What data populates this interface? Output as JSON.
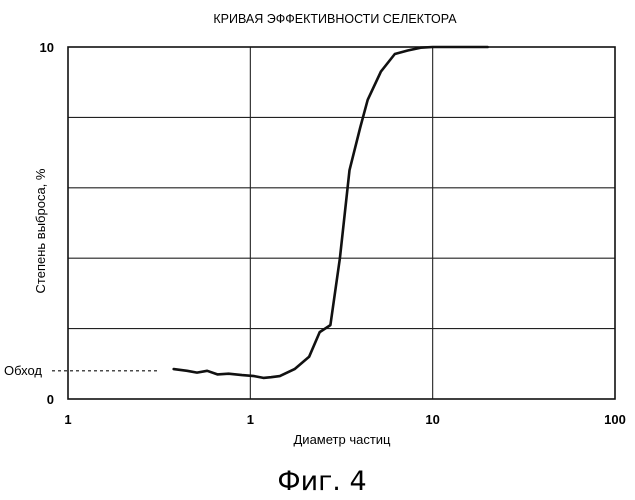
{
  "chart_data": {
    "type": "line",
    "title": "КРИВАЯ ЭФФЕКТИВНОСТИ СЕЛЕКТОРА",
    "xlabel": "Диаметр частиц",
    "ylabel": "Степень выброса, %",
    "x_scale": "log",
    "xlim": [
      0.1,
      100
    ],
    "ylim": [
      0,
      10
    ],
    "x_tick_labels": [
      "1",
      "1",
      "10",
      "100"
    ],
    "y_tick_labels": [
      "0",
      "10"
    ],
    "grid": true,
    "series": [
      {
        "x": [
          0.38,
          0.45,
          0.51,
          0.58,
          0.66,
          0.76,
          0.9,
          1.05,
          1.18,
          1.3,
          1.45,
          1.75,
          2.1,
          2.4,
          2.75,
          3.1,
          3.5,
          4.0,
          4.4,
          5.2,
          6.2,
          7.3,
          8.6,
          10.0,
          12.0,
          16.0,
          20.0
        ],
        "y": [
          0.85,
          0.8,
          0.75,
          0.8,
          0.7,
          0.72,
          0.68,
          0.65,
          0.6,
          0.62,
          0.65,
          0.85,
          1.2,
          1.9,
          2.1,
          4.0,
          6.5,
          7.7,
          8.5,
          9.3,
          9.8,
          9.9,
          9.98,
          10.0,
          10.0,
          10.0,
          10.0
        ]
      }
    ],
    "annotations": [
      {
        "text": "Обход",
        "y": 0.8
      }
    ]
  },
  "caption": "Фиг. 4"
}
